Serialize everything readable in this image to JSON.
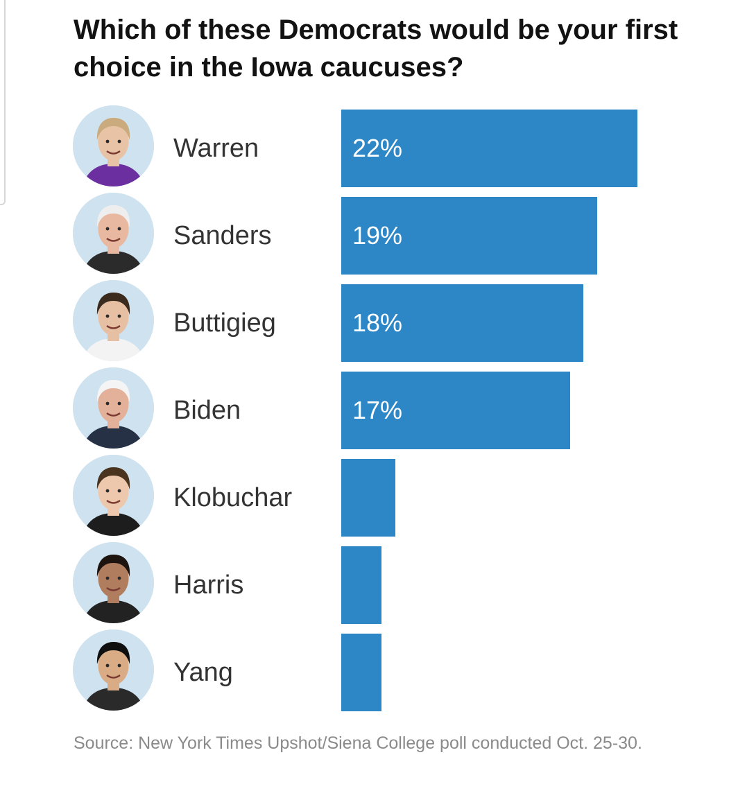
{
  "colors": {
    "bar": "#2d86c6",
    "bar_label": "#ffffff",
    "title": "#121212",
    "name": "#333333",
    "source": "#8a8a8a",
    "avatar_bg": "#cfe2ef"
  },
  "chart_data": {
    "type": "bar",
    "orientation": "horizontal",
    "title": "Which of these Democrats would be your first choice in the Iowa caucuses?",
    "categories": [
      "Warren",
      "Sanders",
      "Buttigieg",
      "Biden",
      "Klobuchar",
      "Harris",
      "Yang"
    ],
    "values": [
      22,
      19,
      18,
      17,
      4,
      3,
      3
    ],
    "value_labels": [
      "22%",
      "19%",
      "18%",
      "17%",
      "",
      "",
      ""
    ],
    "unit": "%",
    "xlabel": "",
    "ylabel": "",
    "xlim": [
      0,
      25
    ],
    "grid": false,
    "source": "Source: New York Times Upshot/Siena College poll conducted Oct. 25-30."
  }
}
